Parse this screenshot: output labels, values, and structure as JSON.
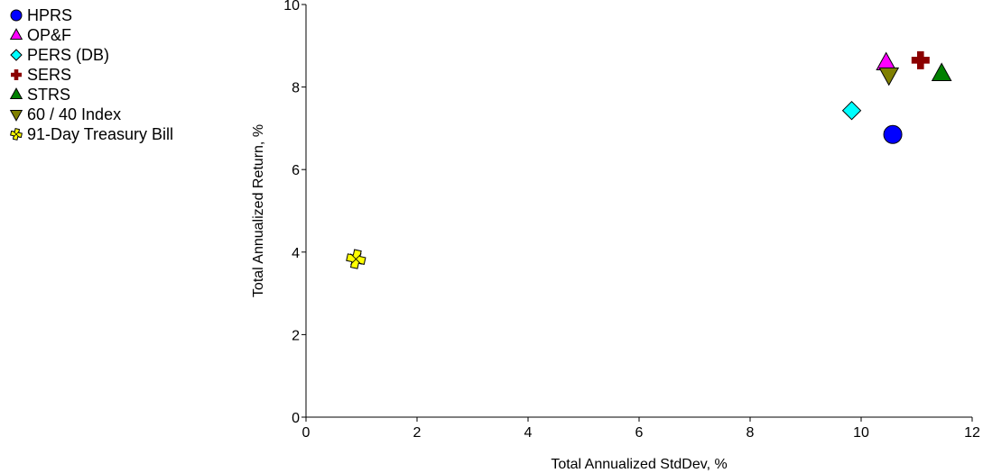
{
  "chart_data": {
    "type": "scatter",
    "title": "",
    "xlabel": "Total Annualized StdDev, %",
    "ylabel": "Total Annualized Return, %",
    "xlim": [
      0,
      12
    ],
    "ylim": [
      0,
      10
    ],
    "xticks": [
      0,
      2,
      4,
      6,
      8,
      10,
      12
    ],
    "yticks": [
      0,
      2,
      4,
      6,
      8,
      10
    ],
    "grid": false,
    "legend_position": "top-left",
    "series": [
      {
        "name": "HPRS",
        "marker": "circle",
        "color": "#0000ff",
        "x": 10.57,
        "y": 6.85
      },
      {
        "name": "OP&F",
        "marker": "triangle-up",
        "color": "#ff00ff",
        "x": 10.45,
        "y": 8.58
      },
      {
        "name": "PERS (DB)",
        "marker": "diamond",
        "color": "#00ffff",
        "x": 9.83,
        "y": 7.43
      },
      {
        "name": "SERS",
        "marker": "plus",
        "color": "#8b0000",
        "x": 11.07,
        "y": 8.65
      },
      {
        "name": "STRS",
        "marker": "triangle-up",
        "color": "#008000",
        "x": 11.45,
        "y": 8.32
      },
      {
        "name": "60 / 40 Index",
        "marker": "triangle-down",
        "color": "#808000",
        "x": 10.5,
        "y": 8.3
      },
      {
        "name": "91-Day Treasury Bill",
        "marker": "cross",
        "color": "#ffff00",
        "x": 0.9,
        "y": 3.83
      }
    ]
  }
}
